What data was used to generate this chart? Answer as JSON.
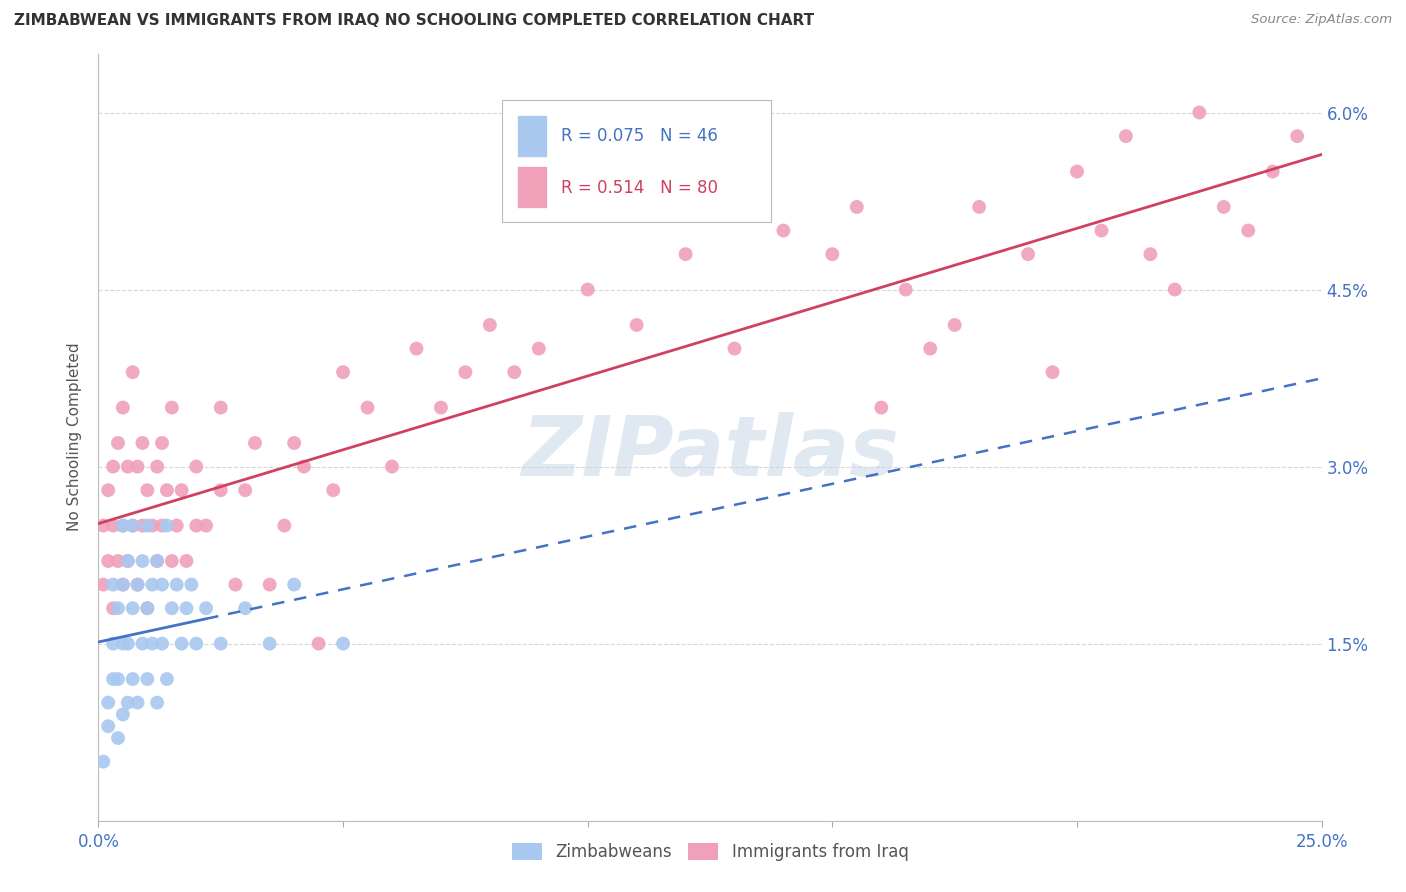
{
  "title": "ZIMBABWEAN VS IMMIGRANTS FROM IRAQ NO SCHOOLING COMPLETED CORRELATION CHART",
  "source": "Source: ZipAtlas.com",
  "ylabel": "No Schooling Completed",
  "xlim": [
    0.0,
    0.25
  ],
  "ylim": [
    0.0,
    0.065
  ],
  "xticks": [
    0.0,
    0.05,
    0.1,
    0.15,
    0.2,
    0.25
  ],
  "xticklabels": [
    "0.0%",
    "",
    "",
    "",
    "",
    "25.0%"
  ],
  "yticks": [
    0.0,
    0.015,
    0.03,
    0.045,
    0.06
  ],
  "yticklabels": [
    "",
    "1.5%",
    "3.0%",
    "4.5%",
    "6.0%"
  ],
  "blue_color": "#a8c8f0",
  "pink_color": "#f0a0b8",
  "blue_line_color": "#4472c4",
  "pink_line_color": "#d04060",
  "blue_r": 0.075,
  "blue_n": 46,
  "pink_r": 0.514,
  "pink_n": 80,
  "background_color": "#ffffff",
  "grid_color": "#d8d8d8",
  "watermark": "ZIPatlas",
  "zimbabweans_x": [
    0.001,
    0.002,
    0.002,
    0.003,
    0.003,
    0.003,
    0.004,
    0.004,
    0.004,
    0.005,
    0.005,
    0.005,
    0.005,
    0.006,
    0.006,
    0.006,
    0.007,
    0.007,
    0.007,
    0.008,
    0.008,
    0.009,
    0.009,
    0.01,
    0.01,
    0.01,
    0.011,
    0.011,
    0.012,
    0.012,
    0.013,
    0.013,
    0.014,
    0.014,
    0.015,
    0.016,
    0.017,
    0.018,
    0.019,
    0.02,
    0.022,
    0.025,
    0.03,
    0.035,
    0.04,
    0.05
  ],
  "zimbabweans_y": [
    0.005,
    0.008,
    0.01,
    0.012,
    0.015,
    0.02,
    0.007,
    0.012,
    0.018,
    0.009,
    0.015,
    0.02,
    0.025,
    0.01,
    0.015,
    0.022,
    0.012,
    0.018,
    0.025,
    0.01,
    0.02,
    0.015,
    0.022,
    0.012,
    0.018,
    0.025,
    0.015,
    0.02,
    0.01,
    0.022,
    0.015,
    0.02,
    0.012,
    0.025,
    0.018,
    0.02,
    0.015,
    0.018,
    0.02,
    0.015,
    0.018,
    0.015,
    0.018,
    0.015,
    0.02,
    0.015
  ],
  "iraq_x": [
    0.001,
    0.001,
    0.002,
    0.002,
    0.003,
    0.003,
    0.003,
    0.004,
    0.004,
    0.005,
    0.005,
    0.005,
    0.006,
    0.006,
    0.007,
    0.007,
    0.008,
    0.008,
    0.009,
    0.009,
    0.01,
    0.01,
    0.011,
    0.012,
    0.012,
    0.013,
    0.013,
    0.014,
    0.015,
    0.015,
    0.016,
    0.017,
    0.018,
    0.02,
    0.02,
    0.022,
    0.025,
    0.025,
    0.028,
    0.03,
    0.032,
    0.035,
    0.038,
    0.04,
    0.042,
    0.045,
    0.048,
    0.05,
    0.055,
    0.06,
    0.065,
    0.07,
    0.075,
    0.08,
    0.085,
    0.09,
    0.1,
    0.11,
    0.12,
    0.13,
    0.14,
    0.15,
    0.155,
    0.16,
    0.165,
    0.17,
    0.175,
    0.18,
    0.19,
    0.195,
    0.2,
    0.205,
    0.21,
    0.215,
    0.22,
    0.225,
    0.23,
    0.235,
    0.24,
    0.245
  ],
  "iraq_y": [
    0.02,
    0.025,
    0.022,
    0.028,
    0.018,
    0.025,
    0.03,
    0.022,
    0.032,
    0.02,
    0.025,
    0.035,
    0.022,
    0.03,
    0.025,
    0.038,
    0.02,
    0.03,
    0.025,
    0.032,
    0.018,
    0.028,
    0.025,
    0.022,
    0.03,
    0.025,
    0.032,
    0.028,
    0.022,
    0.035,
    0.025,
    0.028,
    0.022,
    0.025,
    0.03,
    0.025,
    0.028,
    0.035,
    0.02,
    0.028,
    0.032,
    0.02,
    0.025,
    0.032,
    0.03,
    0.015,
    0.028,
    0.038,
    0.035,
    0.03,
    0.04,
    0.035,
    0.038,
    0.042,
    0.038,
    0.04,
    0.045,
    0.042,
    0.048,
    0.04,
    0.05,
    0.048,
    0.052,
    0.035,
    0.045,
    0.04,
    0.042,
    0.052,
    0.048,
    0.038,
    0.055,
    0.05,
    0.058,
    0.048,
    0.045,
    0.06,
    0.052,
    0.05,
    0.055,
    0.058
  ]
}
